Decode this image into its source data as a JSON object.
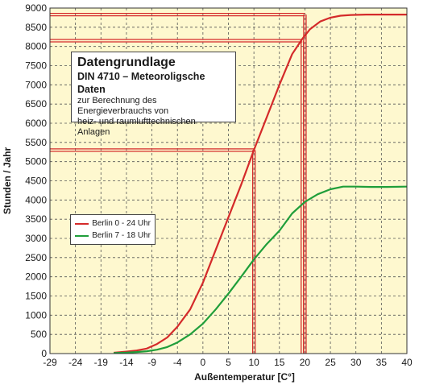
{
  "chart_data": {
    "type": "line",
    "title": "",
    "xlabel": "Außentemperatur [C°]",
    "ylabel": "Stunden / Jahr",
    "xlim": [
      -29,
      40
    ],
    "ylim": [
      0,
      9000
    ],
    "xticks": [
      -29,
      -24,
      -19,
      -14,
      -9,
      -4,
      0,
      5,
      10,
      15,
      20,
      25,
      30,
      35,
      40
    ],
    "yticks": [
      0,
      500,
      1000,
      1500,
      2000,
      2500,
      3000,
      3500,
      4000,
      4500,
      5000,
      5500,
      6000,
      6500,
      7000,
      7500,
      8000,
      8500,
      9000
    ],
    "grid": true,
    "legend_position": "left",
    "background_color": "#fef8cf",
    "series": [
      {
        "name": "Berlin 0 - 24 Uhr",
        "color": "#d42a2a",
        "x": [
          -16.5,
          -14,
          -12,
          -10,
          -8,
          -6,
          -4,
          -2,
          0,
          2.5,
          5,
          7.5,
          10,
          12.5,
          15,
          17.5,
          19.5,
          21,
          23,
          25,
          27,
          29,
          32,
          35,
          40
        ],
        "y": [
          20,
          50,
          80,
          130,
          250,
          420,
          700,
          1150,
          1850,
          2700,
          3550,
          4400,
          5300,
          6150,
          7000,
          7800,
          8200,
          8450,
          8650,
          8750,
          8800,
          8820,
          8830,
          8830,
          8830
        ]
      },
      {
        "name": "Berlin 7 - 18 Uhr",
        "color": "#1f9e3a",
        "x": [
          -16.5,
          -14,
          -12,
          -10,
          -8,
          -6,
          -4,
          -2,
          0,
          2.5,
          5,
          7.5,
          10,
          12.5,
          15,
          17.5,
          20,
          22.5,
          25,
          27.5,
          30,
          33,
          36,
          40
        ],
        "y": [
          15,
          25,
          40,
          60,
          100,
          170,
          290,
          500,
          780,
          1150,
          1560,
          2000,
          2450,
          2850,
          3200,
          3650,
          3950,
          4150,
          4280,
          4350,
          4350,
          4340,
          4340,
          4350
        ]
      }
    ],
    "reference_lines": [
      {
        "temperature": 10,
        "hours": 5300
      },
      {
        "temperature": 19.5,
        "hours": 8150
      },
      {
        "temperature": 20,
        "hours": 8830
      }
    ]
  },
  "info_box": {
    "title": "Datengrundlage",
    "subtitle": "DIN 4710 – Meteoroligsche Daten",
    "line1": "zur Berechnung des Energieverbrauchs von",
    "line2": "heiz- und raumlufttechnischen Anlagen"
  },
  "legend": {
    "item1": "Berlin 0 - 24 Uhr",
    "item2": "Berlin 7 - 18 Uhr"
  }
}
